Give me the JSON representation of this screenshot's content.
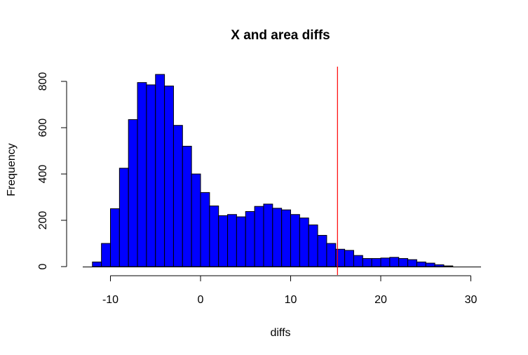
{
  "chart_data": {
    "type": "bar",
    "title": "X and area diffs",
    "xlabel": "diffs",
    "ylabel": "Frequency",
    "bin_width": 1,
    "bin_starts": [
      -12,
      -11,
      -10,
      -9,
      -8,
      -7,
      -6,
      -5,
      -4,
      -3,
      -2,
      -1,
      0,
      1,
      2,
      3,
      4,
      5,
      6,
      7,
      8,
      9,
      10,
      11,
      12,
      13,
      14,
      15,
      16,
      17,
      18,
      19,
      20,
      21,
      22,
      23,
      24,
      25,
      26,
      27
    ],
    "values": [
      20,
      100,
      250,
      425,
      635,
      795,
      785,
      830,
      780,
      610,
      520,
      400,
      320,
      262,
      220,
      225,
      215,
      238,
      260,
      270,
      252,
      245,
      225,
      210,
      180,
      135,
      100,
      75,
      70,
      48,
      35,
      35,
      37,
      40,
      35,
      30,
      20,
      15,
      8,
      3
    ],
    "xlim": [
      -12,
      30
    ],
    "ylim": [
      0,
      850
    ],
    "x_ticks": [
      -10,
      0,
      10,
      20,
      30
    ],
    "y_ticks": [
      0,
      200,
      400,
      600,
      800
    ],
    "bar_fill": "#0000ff",
    "bar_stroke": "#000000",
    "vline": {
      "x": 15.2,
      "color": "#ff0000"
    },
    "grid": false,
    "legend": "none"
  }
}
